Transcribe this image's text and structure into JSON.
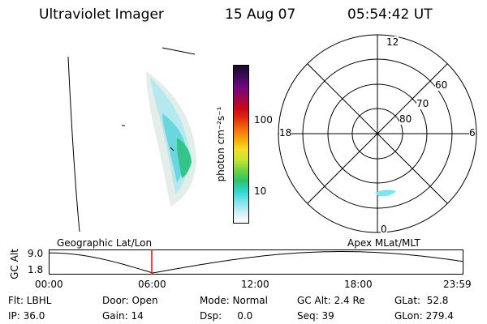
{
  "header": {
    "instrument": "Ultraviolet Imager",
    "date": "15 Aug 07",
    "time": "05:54:42 UT"
  },
  "colorbar": {
    "label": "photon cm⁻²s⁻¹",
    "ticks": [
      "100",
      "10"
    ],
    "colors": [
      "#160c2c",
      "#3d0a58",
      "#6e0880",
      "#990654",
      "#c8061d",
      "#e3280c",
      "#f26a08",
      "#f8a30b",
      "#f6dc2a",
      "#c4e636",
      "#6fd23e",
      "#2ec46a",
      "#2ed7d2",
      "#7fe3ee",
      "#cfeef4",
      "#ffffff"
    ]
  },
  "polar": {
    "mlt_labels": {
      "top": "12",
      "left": "18",
      "right": "6",
      "bottom": "0"
    },
    "lat_labels": [
      "60",
      "70",
      "80"
    ]
  },
  "timeline": {
    "left_title": "Geographic Lat/Lon",
    "right_title": "Apex MLat/MLT",
    "axis_label": "GC Alt",
    "ymax": "9.0",
    "ymin": "1.8",
    "time_ticks": [
      "00:00",
      "06:00",
      "12:00",
      "18:00",
      "23:59"
    ],
    "marker_color": "#ff0000"
  },
  "status": {
    "flt": "Flt: LBHL",
    "ip": "IP: 36.0",
    "door": "Door: Open",
    "gain": "Gain: 14",
    "mode": "Mode: Normal",
    "dsp": "Dsp:     0.0",
    "gcalt": "GC Alt: 2.4 Re",
    "seq": "Seq: 39",
    "glat": "GLat:  52.8",
    "glon": "GLon: 279.4"
  }
}
